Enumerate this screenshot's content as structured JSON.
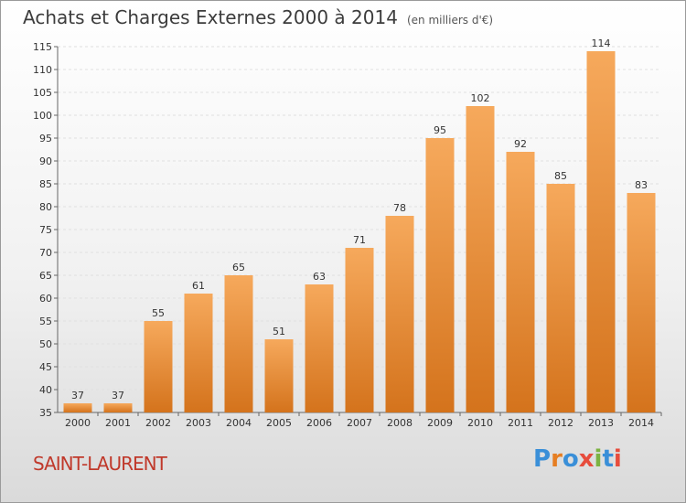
{
  "title": "Achats et Charges Externes 2000 à 2014",
  "unit": "(en milliers d'€)",
  "location": "SAINT-LAURENT",
  "brand": {
    "name": "Proxiti",
    "letters": [
      {
        "ch": "P",
        "color": "#3a8fd8"
      },
      {
        "ch": "r",
        "color": "#e67e22"
      },
      {
        "ch": "o",
        "color": "#3a8fd8"
      },
      {
        "ch": "x",
        "color": "#e74c3c"
      },
      {
        "ch": "i",
        "color": "#7cb342"
      },
      {
        "ch": "t",
        "color": "#3a8fd8"
      },
      {
        "ch": "i",
        "color": "#e74c3c"
      }
    ]
  },
  "colors": {
    "bar_top": "#f6a95c",
    "bar_bottom": "#d4731c",
    "grid": "#e0e0e0",
    "axis_text": "#333333"
  },
  "chart_data": {
    "type": "bar",
    "categories": [
      "2000",
      "2001",
      "2002",
      "2003",
      "2004",
      "2005",
      "2006",
      "2007",
      "2008",
      "2009",
      "2010",
      "2011",
      "2012",
      "2013",
      "2014"
    ],
    "values": [
      37,
      37,
      55,
      61,
      65,
      51,
      63,
      71,
      78,
      95,
      102,
      92,
      85,
      114,
      83
    ],
    "ylim": [
      35,
      115
    ],
    "yticks": [
      35,
      40,
      45,
      50,
      55,
      60,
      65,
      70,
      75,
      80,
      85,
      90,
      95,
      100,
      105,
      110,
      115
    ],
    "grid": "horizontal dashed",
    "legend": "none"
  }
}
